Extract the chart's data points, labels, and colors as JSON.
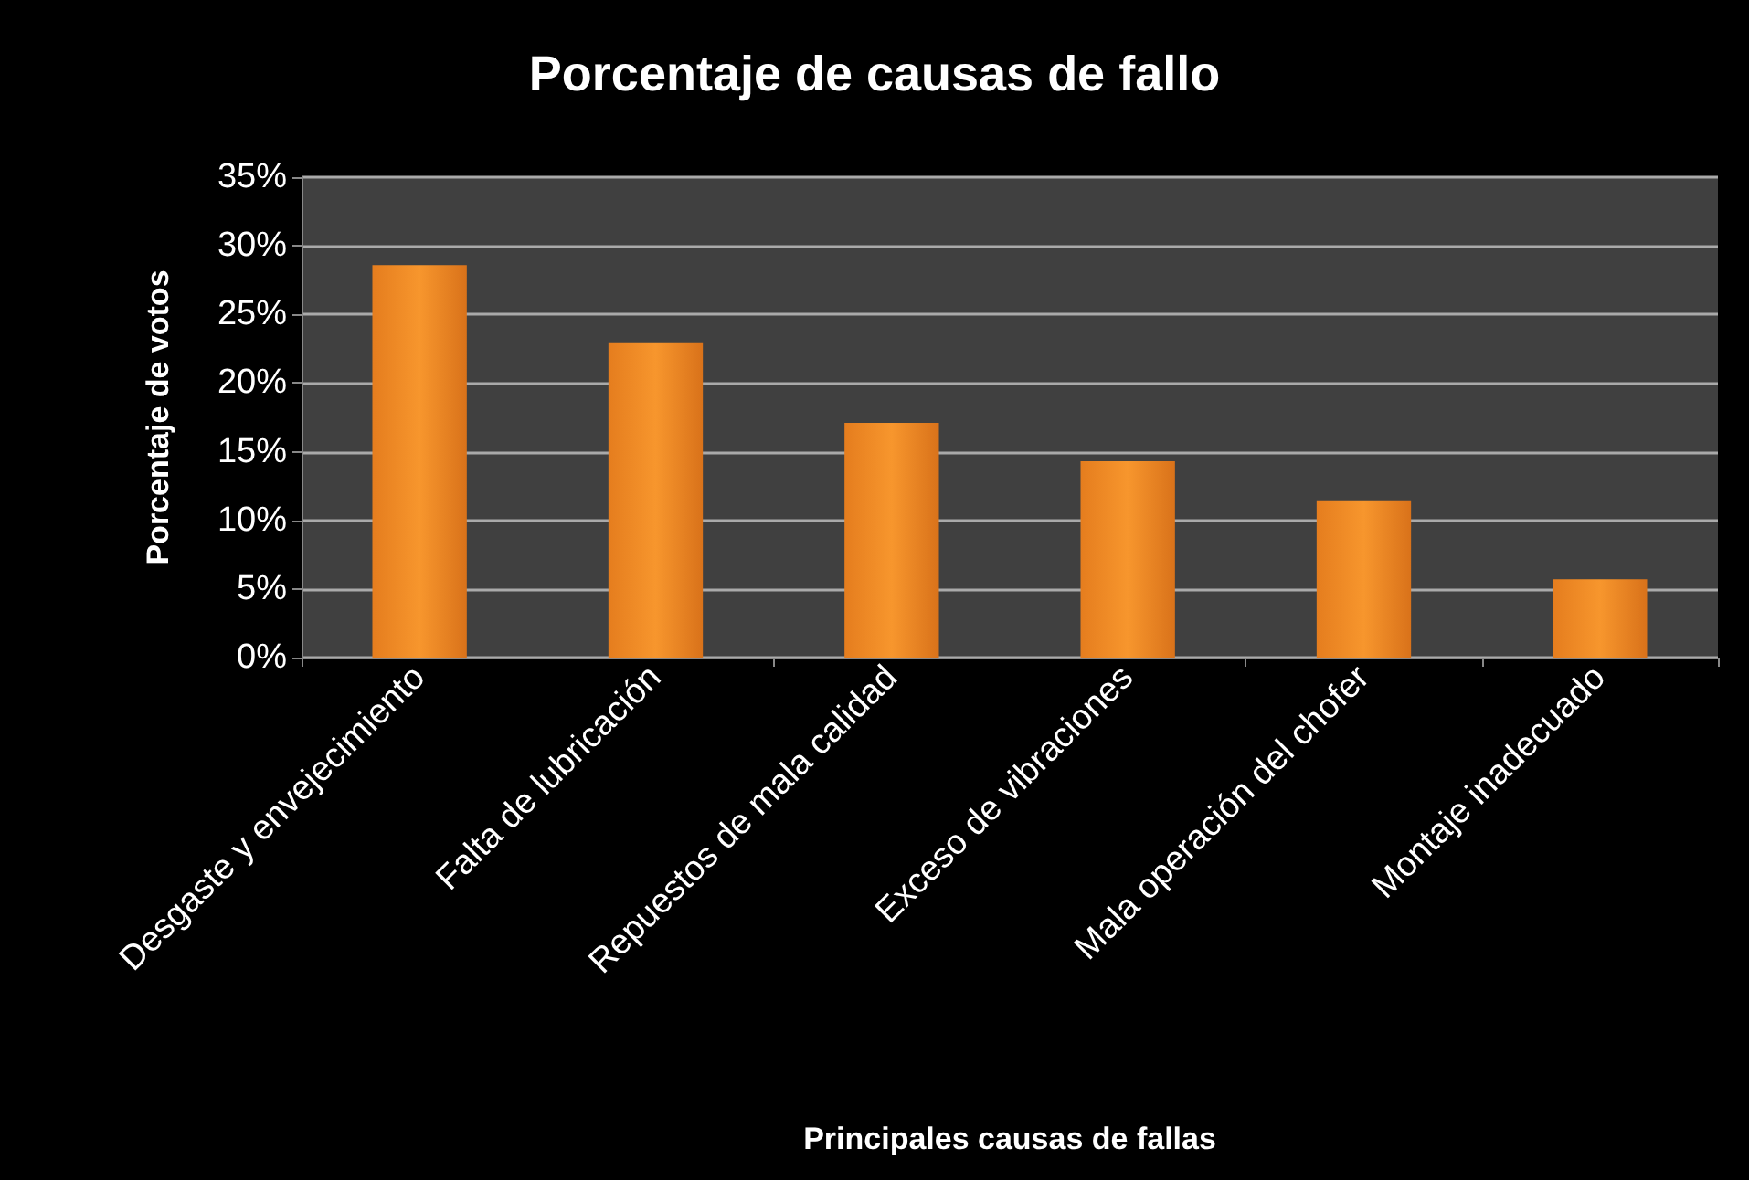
{
  "chart_data": {
    "type": "bar",
    "title": "Porcentaje de causas de fallo",
    "xlabel": "Principales causas de fallas",
    "ylabel": "Porcentaje de votos",
    "categories": [
      "Desgaste y envejecimiento",
      "Falta de lubricación",
      "Repuestos de mala calidad",
      "Exceso de vibraciones",
      "Mala operación del chofer",
      "Montaje inadecuado"
    ],
    "values": [
      28.6,
      22.9,
      17.1,
      14.3,
      11.4,
      5.7
    ],
    "color": "#f7962d",
    "ylim": [
      0,
      35
    ],
    "yticks": [
      {
        "value": 0,
        "label": "0%"
      },
      {
        "value": 5,
        "label": "5%"
      },
      {
        "value": 10,
        "label": "10%"
      },
      {
        "value": 15,
        "label": "15%"
      },
      {
        "value": 20,
        "label": "20%"
      },
      {
        "value": 25,
        "label": "25%"
      },
      {
        "value": 30,
        "label": "30%"
      },
      {
        "value": 35,
        "label": "35%"
      }
    ],
    "grid": "y"
  }
}
